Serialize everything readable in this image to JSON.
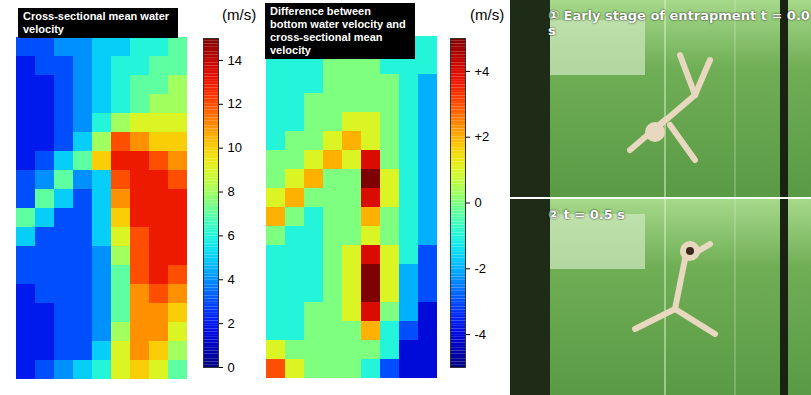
{
  "chart_data": [
    {
      "type": "heatmap",
      "title": "Cross-sectional mean water velocity",
      "color_label": "(m/s)",
      "color_range": [
        0,
        15
      ],
      "color_ticks": [
        0,
        2,
        4,
        6,
        8,
        10,
        12,
        14
      ],
      "tick_labels": false,
      "cells": [
        [
          3,
          3,
          4,
          4,
          5,
          5,
          6,
          6,
          7
        ],
        [
          2,
          3,
          3,
          4,
          5,
          6,
          6,
          7,
          7
        ],
        [
          2,
          2,
          3,
          4,
          5,
          6,
          7,
          7,
          8
        ],
        [
          2,
          2,
          3,
          4,
          5,
          6,
          7,
          8,
          8
        ],
        [
          2,
          2,
          3,
          4,
          6,
          8,
          9,
          9,
          9
        ],
        [
          2,
          2,
          3,
          5,
          8,
          12,
          11,
          10,
          10
        ],
        [
          2,
          3,
          5,
          7,
          10,
          13,
          13,
          12,
          11
        ],
        [
          3,
          4,
          7,
          4,
          5,
          12,
          13,
          13,
          12
        ],
        [
          3,
          7,
          5,
          3,
          5,
          11,
          13,
          13,
          13
        ],
        [
          7,
          5,
          3,
          3,
          5,
          10,
          13,
          13,
          13
        ],
        [
          5,
          3,
          3,
          3,
          5,
          9,
          12,
          13,
          13
        ],
        [
          3,
          3,
          3,
          3,
          4,
          8,
          12,
          13,
          13
        ],
        [
          3,
          3,
          3,
          3,
          4,
          7,
          12,
          13,
          12
        ],
        [
          2,
          3,
          3,
          3,
          4,
          7,
          11,
          12,
          11
        ],
        [
          2,
          2,
          3,
          3,
          4,
          7,
          11,
          11,
          10
        ],
        [
          2,
          2,
          3,
          3,
          4,
          8,
          11,
          11,
          9
        ],
        [
          2,
          2,
          3,
          3,
          5,
          9,
          11,
          10,
          8
        ],
        [
          2,
          3,
          4,
          5,
          6,
          9,
          10,
          9,
          7
        ]
      ]
    },
    {
      "type": "heatmap",
      "title": "Difference between bottom water velocity and cross-sectional mean velocity",
      "color_label": "(m/s)",
      "color_range": [
        -5,
        5
      ],
      "color_ticks": [
        {
          "value": 4,
          "label": "+4"
        },
        {
          "value": 2,
          "label": "+2"
        },
        0,
        -2,
        -4
      ],
      "tick_labels": false,
      "cells": [
        [
          -1,
          -1,
          -1,
          -1,
          0,
          0,
          -1,
          -1,
          -1
        ],
        [
          -1,
          -1,
          -1,
          0,
          0,
          0,
          -1,
          -1,
          -1
        ],
        [
          -1,
          -1,
          -1,
          0,
          0,
          0,
          0,
          -1,
          -2
        ],
        [
          -1,
          -1,
          0,
          0,
          0,
          0,
          0,
          -1,
          -2
        ],
        [
          -1,
          -1,
          0,
          0,
          1,
          1,
          0,
          -1,
          -2
        ],
        [
          -1,
          0,
          0,
          1,
          2,
          1,
          0,
          -1,
          -2
        ],
        [
          0,
          0,
          1,
          2,
          1,
          4,
          0,
          -1,
          -2
        ],
        [
          0,
          1,
          2,
          0,
          0,
          5,
          1,
          -1,
          -2
        ],
        [
          1,
          2,
          0,
          0,
          0,
          4,
          1,
          -1,
          -2
        ],
        [
          2,
          0,
          -1,
          0,
          0,
          2,
          0,
          -1,
          -2
        ],
        [
          0,
          -1,
          -1,
          0,
          0,
          1,
          0,
          -1,
          -2
        ],
        [
          -1,
          -1,
          -1,
          0,
          1,
          4,
          1,
          -1,
          -3
        ],
        [
          -1,
          -1,
          -1,
          0,
          1,
          5,
          1,
          -2,
          -3
        ],
        [
          -1,
          -1,
          -1,
          0,
          1,
          5,
          1,
          -2,
          -3
        ],
        [
          -1,
          -1,
          0,
          0,
          1,
          4,
          0,
          -2,
          -4
        ],
        [
          -1,
          -1,
          0,
          0,
          0,
          2,
          -1,
          -3,
          -4
        ],
        [
          1,
          0,
          0,
          0,
          0,
          0,
          -1,
          -4,
          -4
        ],
        [
          3,
          1,
          0,
          0,
          0,
          -1,
          -3,
          -4,
          -4
        ]
      ]
    }
  ],
  "photos": [
    {
      "label": "① Early stage of entrapment t = 0.0 s"
    },
    {
      "label": "② t = 0.5 s"
    }
  ]
}
